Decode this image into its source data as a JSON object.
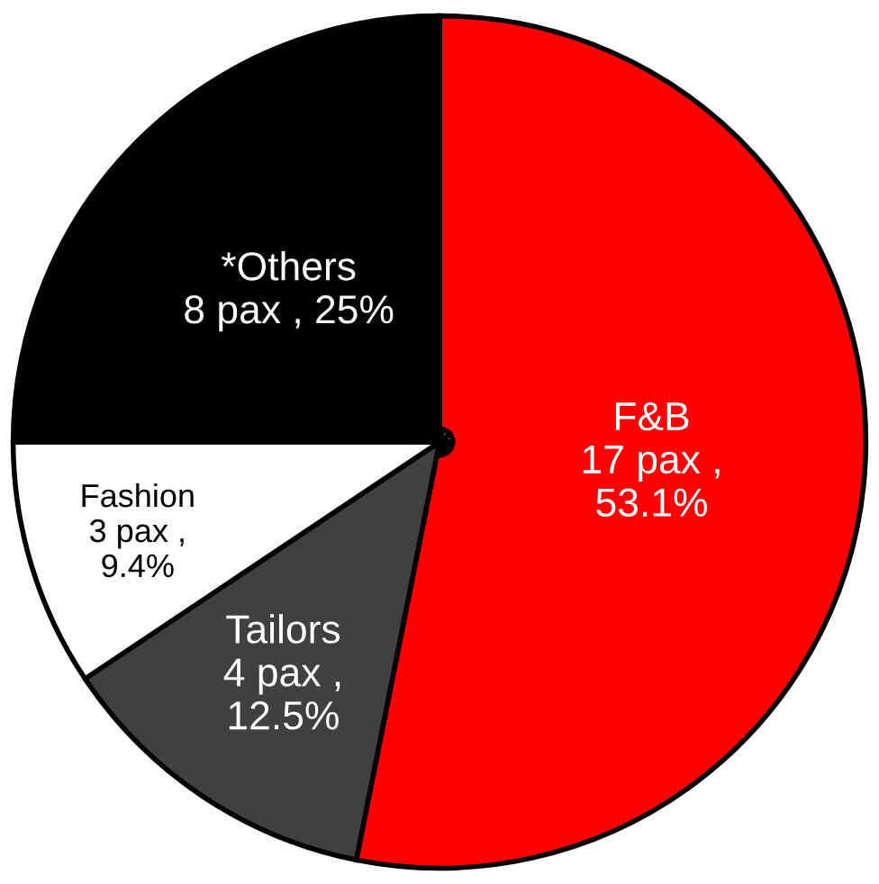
{
  "chart_data": {
    "type": "pie",
    "categories": [
      "F&B",
      "Tailors",
      "Fashion",
      "*Others"
    ],
    "values": [
      17,
      4,
      3,
      8
    ],
    "value_labels": [
      "17 pax ,\n53.1%",
      "4 pax ,\n12.5%",
      "3 pax ,\n9.4%",
      "8 pax , 25%"
    ],
    "colors": [
      "#ff0000",
      "#404040",
      "#ffffff",
      "#000000"
    ]
  }
}
